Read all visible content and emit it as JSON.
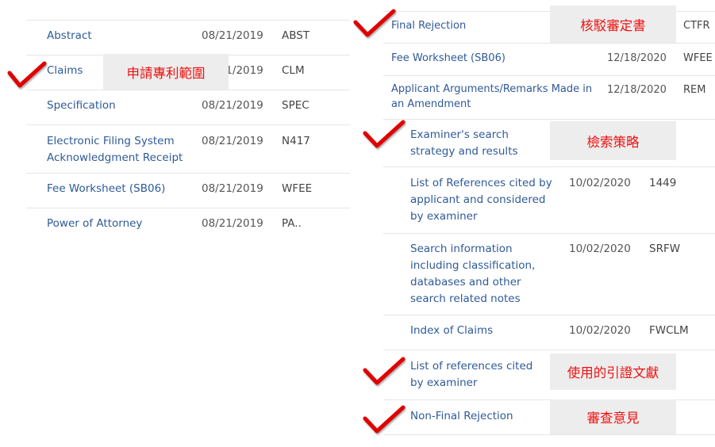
{
  "left": {
    "rows": [
      {
        "title": "Abstract",
        "date": "08/21/2019",
        "code": "ABST"
      },
      {
        "title": "Claims",
        "date": "08/21/2019",
        "code": "CLM",
        "note": "申請專利範圍"
      },
      {
        "title": "Specification",
        "date": "08/21/2019",
        "code": "SPEC"
      },
      {
        "title": "Electronic Filing System Acknowledgment Receipt",
        "date": "08/21/2019",
        "code": "N417"
      },
      {
        "title": "Fee Worksheet (SB06)",
        "date": "08/21/2019",
        "code": "WFEE"
      },
      {
        "title": "Power of Attorney",
        "date": "08/21/2019",
        "code": "PA.."
      }
    ]
  },
  "right_top": {
    "rows": [
      {
        "title": "Final Rejection",
        "code": "CTFR",
        "note": "核駁審定書"
      },
      {
        "title": "Fee Worksheet (SB06)",
        "date": "12/18/2020",
        "code": "WFEE"
      },
      {
        "title": "Applicant Arguments/Remarks Made in an Amendment",
        "date": "12/18/2020",
        "code": "REM"
      }
    ]
  },
  "right_bottom": {
    "rows": [
      {
        "title": "Examiner's search strategy and results",
        "note": "檢索策略"
      },
      {
        "title": "List of References cited by applicant and considered by examiner",
        "date": "10/02/2020",
        "code": "1449"
      },
      {
        "title": "Search information including classification, databases and other search related notes",
        "date": "10/02/2020",
        "code": "SRFW"
      },
      {
        "title": "Index of Claims",
        "date": "10/02/2020",
        "code": "FWCLM"
      },
      {
        "title": "List of references cited by examiner",
        "note": "使用的引證文獻"
      },
      {
        "title": "Non-Final Rejection",
        "note": "審查意見"
      }
    ]
  },
  "colors": {
    "link": "#2f5a97",
    "annotation": "#ee1111",
    "checkmark": "#e00000"
  },
  "icons": {
    "annotation_mark": "checkmark-icon"
  }
}
